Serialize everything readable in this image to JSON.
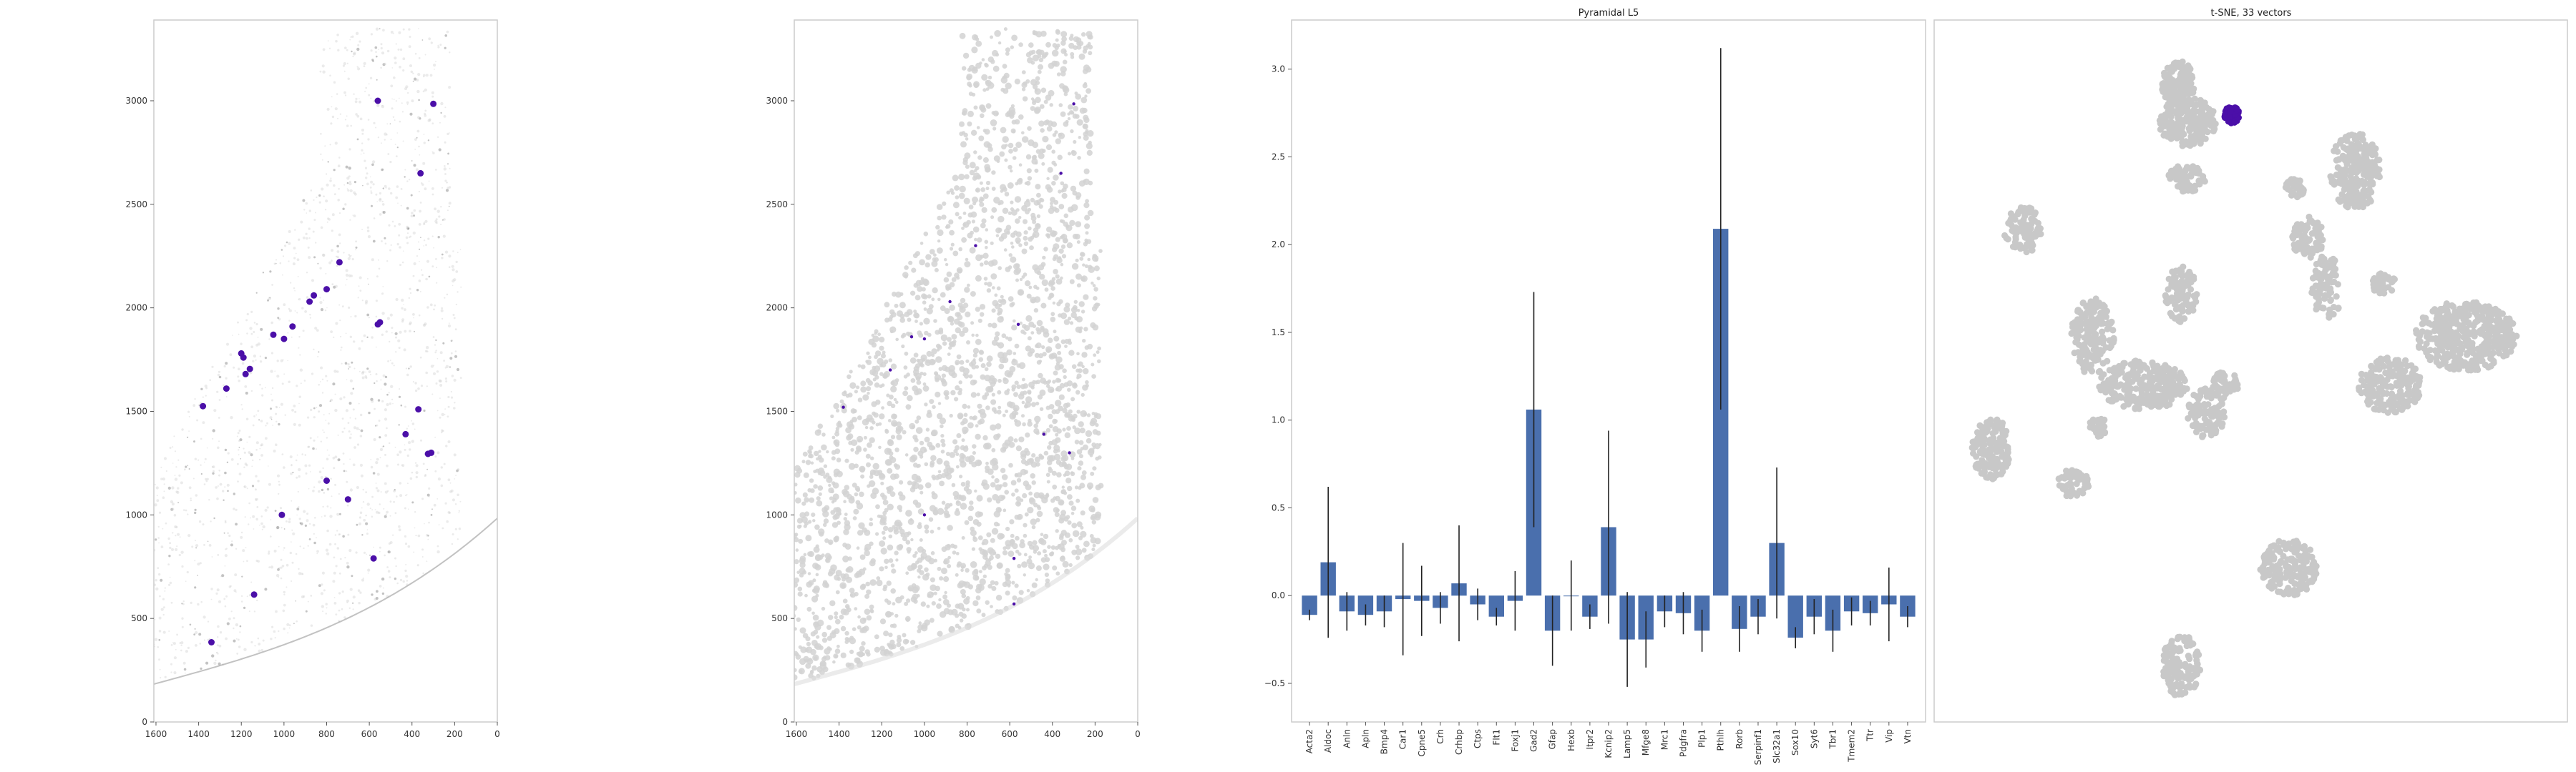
{
  "colors": {
    "highlight": "#4b0fa8",
    "bar": "#4a6fad",
    "errorbar": "#222222",
    "tissue": "#d2d2d2",
    "tissue_dark": "#7a7a7a",
    "tsne_points": "#c8c8c8",
    "frame": "#cccccc"
  },
  "chart_data": [
    {
      "type": "scatter",
      "panel": "spatial-density",
      "title": "",
      "xlabel": "",
      "ylabel": "",
      "x_ticks": [
        "1600",
        "1400",
        "1200",
        "1000",
        "800",
        "600",
        "400",
        "200",
        "0"
      ],
      "y_ticks": [
        "0",
        "500",
        "1000",
        "1500",
        "2000",
        "2500",
        "3000"
      ],
      "xlim": [
        1610,
        0
      ],
      "ylim": [
        3390,
        0
      ],
      "grid": false,
      "highlight_points": [
        [
          1340,
          385
        ],
        [
          1140,
          615
        ],
        [
          580,
          790
        ],
        [
          1010,
          1000
        ],
        [
          700,
          1075
        ],
        [
          800,
          1165
        ],
        [
          430,
          1390
        ],
        [
          310,
          1300
        ],
        [
          325,
          1295
        ],
        [
          370,
          1510
        ],
        [
          1380,
          1525
        ],
        [
          1270,
          1610
        ],
        [
          1180,
          1680
        ],
        [
          1160,
          1705
        ],
        [
          1190,
          1760
        ],
        [
          1200,
          1780
        ],
        [
          1050,
          1870
        ],
        [
          1000,
          1850
        ],
        [
          960,
          1910
        ],
        [
          880,
          2030
        ],
        [
          860,
          2060
        ],
        [
          800,
          2090
        ],
        [
          560,
          1920
        ],
        [
          550,
          1930
        ],
        [
          740,
          2220
        ],
        [
          360,
          2650
        ],
        [
          560,
          3000
        ],
        [
          300,
          2985
        ]
      ]
    },
    {
      "type": "scatter",
      "panel": "spatial-tissue",
      "title": "",
      "xlabel": "",
      "ylabel": "",
      "x_ticks": [
        "1600",
        "1400",
        "1200",
        "1000",
        "800",
        "600",
        "400",
        "200",
        "0"
      ],
      "y_ticks": [
        "0",
        "500",
        "1000",
        "1500",
        "2000",
        "2500",
        "3000"
      ],
      "xlim": [
        1610,
        0
      ],
      "ylim": [
        3390,
        0
      ],
      "grid": false,
      "highlight_points": [
        [
          1380,
          1520
        ],
        [
          1160,
          1700
        ],
        [
          1060,
          1860
        ],
        [
          1000,
          1850
        ],
        [
          880,
          2030
        ],
        [
          560,
          1920
        ],
        [
          320,
          1300
        ],
        [
          440,
          1390
        ],
        [
          360,
          2650
        ],
        [
          300,
          2985
        ],
        [
          1000,
          1000
        ],
        [
          580,
          570
        ],
        [
          580,
          790
        ],
        [
          760,
          2300
        ]
      ]
    },
    {
      "type": "bar",
      "panel": "gene-expression",
      "title": "Pyramidal L5",
      "xlabel": "",
      "ylabel": "",
      "ylim": [
        -0.72,
        3.28
      ],
      "y_ticks": [
        -0.5,
        0.0,
        0.5,
        1.0,
        1.5,
        2.0,
        2.5,
        3.0
      ],
      "y_tick_labels": [
        "−0.5",
        "0.0",
        "0.5",
        "1.0",
        "1.5",
        "2.0",
        "2.5",
        "3.0"
      ],
      "grid": false,
      "categories": [
        "Acta2",
        "Aldoc",
        "Anln",
        "Apln",
        "Bmp4",
        "Car1",
        "Cpne5",
        "Crh",
        "Crhbp",
        "Ctps",
        "Flt1",
        "Foxj1",
        "Gad2",
        "Gfap",
        "Hexb",
        "Itpr2",
        "Kcnip2",
        "Lamp5",
        "Mfge8",
        "Mrc1",
        "Pdgfra",
        "Plp1",
        "Pthlh",
        "Rorb",
        "Serpinf1",
        "Slc32a1",
        "Sox10",
        "Syt6",
        "Tbr1",
        "Tmem2",
        "Ttr",
        "Vip",
        "Vtn"
      ],
      "values": [
        -0.11,
        0.19,
        -0.09,
        -0.11,
        -0.09,
        -0.02,
        -0.03,
        -0.07,
        0.07,
        -0.05,
        -0.12,
        -0.03,
        1.06,
        -0.2,
        0.0,
        -0.12,
        0.39,
        -0.25,
        -0.25,
        -0.09,
        -0.1,
        -0.2,
        2.09,
        -0.19,
        -0.12,
        0.3,
        -0.24,
        -0.12,
        -0.2,
        -0.09,
        -0.1,
        -0.05,
        -0.12
      ],
      "errors": [
        0.03,
        0.43,
        0.11,
        0.06,
        0.09,
        0.32,
        0.2,
        0.09,
        0.33,
        0.09,
        0.05,
        0.17,
        0.67,
        0.2,
        0.2,
        0.07,
        0.55,
        0.27,
        0.16,
        0.09,
        0.12,
        0.12,
        1.03,
        0.13,
        0.1,
        0.43,
        0.06,
        0.1,
        0.12,
        0.08,
        0.07,
        0.21,
        0.06
      ]
    },
    {
      "type": "scatter",
      "panel": "tsne",
      "title": "t-SNE, 33 vectors",
      "xlabel": "",
      "ylabel": "",
      "grid": false,
      "highlight_cluster": [
        0.47,
        0.135
      ]
    }
  ]
}
